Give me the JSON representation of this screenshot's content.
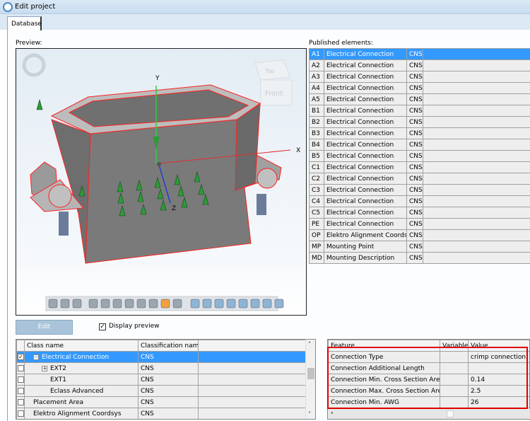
{
  "window": {
    "title": "Edit project"
  },
  "tabs": [
    {
      "label": "Database",
      "active": true
    }
  ],
  "preview": {
    "label": "Preview:",
    "axes": {
      "x": "X",
      "y": "Y",
      "z": "Z"
    },
    "view_cube": {
      "top": "Top",
      "front": "Front"
    },
    "toolbar_icons": [
      "cylinder-outline-icon",
      "cylinder-shaded-icon",
      "cylinder-dark-icon",
      "zoom-icon",
      "zoom-fit-icon",
      "pan-icon",
      "measure-icon",
      "sphere-icon",
      "section-icon",
      "color-icon",
      "box-icon",
      "view-iso-1-icon",
      "view-iso-2-icon",
      "view-iso-3-icon",
      "view-iso-4-icon",
      "view-iso-5-icon",
      "view-iso-6-icon",
      "view-iso-7-icon",
      "more-icon"
    ]
  },
  "published": {
    "label": "Published elements:",
    "rows": [
      {
        "code": "A1",
        "name": "Electrical Connection",
        "cls": "CNS",
        "selected": true
      },
      {
        "code": "A2",
        "name": "Electrical Connection",
        "cls": "CNS"
      },
      {
        "code": "A3",
        "name": "Electrical Connection",
        "cls": "CNS"
      },
      {
        "code": "A4",
        "name": "Electrical Connection",
        "cls": "CNS"
      },
      {
        "code": "A5",
        "name": "Electrical Connection",
        "cls": "CNS"
      },
      {
        "code": "B1",
        "name": "Electrical Connection",
        "cls": "CNS"
      },
      {
        "code": "B2",
        "name": "Electrical Connection",
        "cls": "CNS"
      },
      {
        "code": "B3",
        "name": "Electrical Connection",
        "cls": "CNS"
      },
      {
        "code": "B4",
        "name": "Electrical Connection",
        "cls": "CNS"
      },
      {
        "code": "B5",
        "name": "Electrical Connection",
        "cls": "CNS"
      },
      {
        "code": "C1",
        "name": "Electrical Connection",
        "cls": "CNS"
      },
      {
        "code": "C2",
        "name": "Electrical Connection",
        "cls": "CNS"
      },
      {
        "code": "C3",
        "name": "Electrical Connection",
        "cls": "CNS"
      },
      {
        "code": "C4",
        "name": "Electrical Connection",
        "cls": "CNS"
      },
      {
        "code": "C5",
        "name": "Electrical Connection",
        "cls": "CNS"
      },
      {
        "code": "PE",
        "name": "Electrical Connection",
        "cls": "CNS"
      },
      {
        "code": "OP",
        "name": "Elektro Alignment Coordsys",
        "cls": "CNS"
      },
      {
        "code": "MP",
        "name": "Mounting Point",
        "cls": "CNS"
      },
      {
        "code": "MD",
        "name": "Mounting Description",
        "cls": "CNS"
      }
    ]
  },
  "edit_button": "Edit",
  "display_preview": {
    "label": "Display preview",
    "checked": true
  },
  "classes": {
    "headers": [
      "Class name",
      "Classification name"
    ],
    "rows": [
      {
        "name": "Electrical Connection",
        "cls": "CNS",
        "checked": true,
        "selected": true,
        "indent": 1,
        "expander": "−"
      },
      {
        "name": "EXT2",
        "cls": "CNS",
        "indent": 2,
        "expander": "+"
      },
      {
        "name": "EXT1",
        "cls": "CNS",
        "indent": 3
      },
      {
        "name": "Eclass Advanced",
        "cls": "CNS",
        "indent": 3
      },
      {
        "name": "Placement Area",
        "cls": "CNS",
        "indent": 1
      },
      {
        "name": "Elektro Alignment Coordsys",
        "cls": "CNS",
        "indent": 1
      }
    ]
  },
  "features": {
    "headers": [
      "Feature",
      "Variable",
      "Value"
    ],
    "rows": [
      {
        "feature": "Connection Type",
        "variable": "",
        "value": "crimp connection"
      },
      {
        "feature": "Connection Additional Length",
        "variable": "",
        "value": ""
      },
      {
        "feature": "Connection Min. Cross Section Area",
        "variable": "",
        "value": "0.14"
      },
      {
        "feature": "Connection Max. Cross Section Area",
        "variable": "",
        "value": "2.5"
      },
      {
        "feature": "Connection Min. AWG",
        "variable": "",
        "value": "26"
      }
    ]
  },
  "colors": {
    "selection": "#3399ff",
    "highlight": "#e00000",
    "model": "#7a7a7a"
  }
}
